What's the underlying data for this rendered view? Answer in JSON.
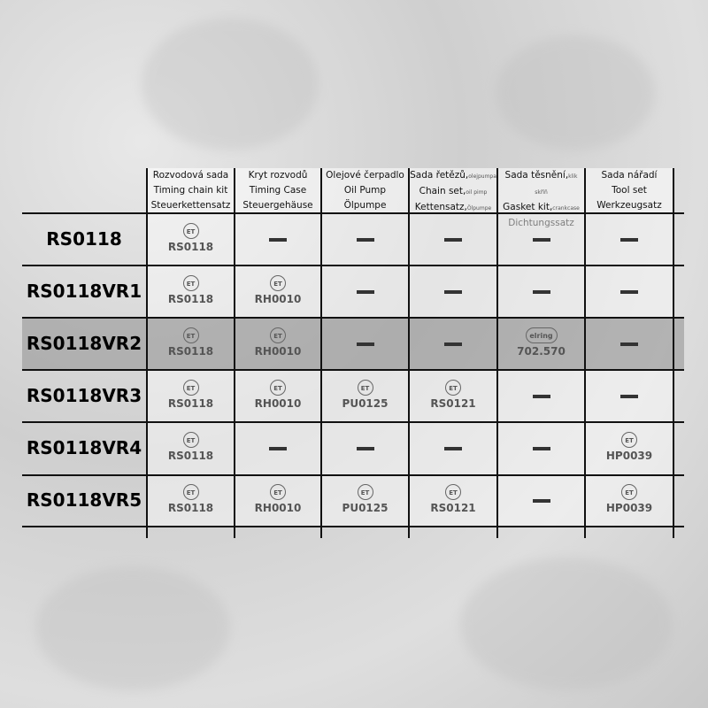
{
  "columns": [
    [
      "Rozvodová sada",
      "Timing chain kit",
      "Steuerkettensatz"
    ],
    [
      "Kryt rozvodů",
      "Timing Case",
      "Steuergehäuse"
    ],
    [
      "Olejové čerpadlo",
      "Oil Pump",
      "Ölpumpe"
    ],
    [
      [
        "Sada řetězů,",
        "olejpumpa"
      ],
      [
        "Chain set,",
        "oil pimp"
      ],
      [
        "Kettensatz,",
        "Ölpumpe"
      ]
    ],
    [
      [
        "Sada těsnění,",
        "klik skříň"
      ],
      [
        "Gasket kit,",
        "crankcase"
      ],
      [
        "Dichtungssatz",
        ""
      ]
    ],
    [
      "Sada nářadí",
      "Tool set",
      "Werkzeugsatz"
    ]
  ],
  "rows": [
    {
      "label": "RS0118",
      "cells": [
        {
          "brand": "ET",
          "code": "RS0118"
        },
        null,
        null,
        null,
        null,
        null
      ]
    },
    {
      "label": "RS0118VR1",
      "cells": [
        {
          "brand": "ET",
          "code": "RS0118"
        },
        {
          "brand": "ET",
          "code": "RH0010"
        },
        null,
        null,
        null,
        null
      ]
    },
    {
      "label": "RS0118VR2",
      "highlight": true,
      "cells": [
        {
          "brand": "ET",
          "code": "RS0118"
        },
        {
          "brand": "ET",
          "code": "RH0010"
        },
        null,
        null,
        {
          "brand": "elring",
          "code": "702.570"
        },
        null
      ]
    },
    {
      "label": "RS0118VR3",
      "cells": [
        {
          "brand": "ET",
          "code": "RS0118"
        },
        {
          "brand": "ET",
          "code": "RH0010"
        },
        {
          "brand": "ET",
          "code": "PU0125"
        },
        {
          "brand": "ET",
          "code": "RS0121"
        },
        null,
        null
      ]
    },
    {
      "label": "RS0118VR4",
      "cells": [
        {
          "brand": "ET",
          "code": "RS0118"
        },
        null,
        null,
        null,
        null,
        {
          "brand": "ET",
          "code": "HP0039"
        }
      ]
    },
    {
      "label": "RS0118VR5",
      "cells": [
        {
          "brand": "ET",
          "code": "RS0118"
        },
        {
          "brand": "ET",
          "code": "RH0010"
        },
        {
          "brand": "ET",
          "code": "PU0125"
        },
        {
          "brand": "ET",
          "code": "RS0121"
        },
        null,
        {
          "brand": "ET",
          "code": "HP0039"
        }
      ]
    }
  ],
  "colors": {
    "highlight_row": "#9a9a9a",
    "line": "#111111",
    "code_text": "#555555"
  }
}
